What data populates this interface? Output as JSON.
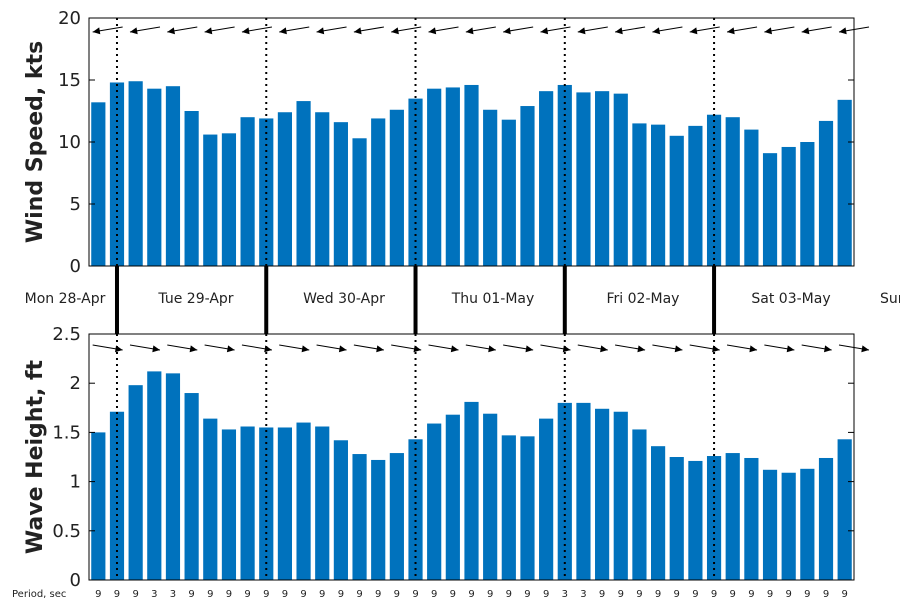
{
  "chart_data": [
    {
      "type": "bar",
      "ylabel": "Wind Speed, kts",
      "ylim": [
        0,
        20
      ],
      "yticks": [
        "0",
        "5",
        "10",
        "15",
        "20"
      ],
      "bar_color": "#0072bd",
      "values": [
        13.2,
        14.8,
        14.9,
        14.3,
        14.5,
        12.5,
        10.6,
        10.7,
        12.0,
        11.9,
        12.4,
        13.3,
        12.4,
        11.6,
        10.3,
        11.9,
        12.6,
        13.5,
        14.3,
        14.4,
        14.6,
        12.6,
        11.8,
        12.9,
        14.1,
        14.6,
        14.0,
        14.1,
        13.9,
        11.5,
        11.4,
        10.5,
        11.3,
        12.2,
        12.0,
        11.0,
        9.1,
        9.6,
        10.0,
        11.7,
        13.4
      ],
      "direction_arrows": "pointing left, slightly down-left"
    },
    {
      "type": "bar",
      "ylabel": "Wave Height, ft",
      "ylim": [
        0,
        2.5
      ],
      "yticks": [
        "0",
        "0.5",
        "1",
        "1.5",
        "2",
        "2.5"
      ],
      "bar_color": "#0072bd",
      "values": [
        1.5,
        1.71,
        1.98,
        2.12,
        2.1,
        1.9,
        1.64,
        1.53,
        1.56,
        1.55,
        1.55,
        1.6,
        1.56,
        1.42,
        1.28,
        1.22,
        1.29,
        1.43,
        1.59,
        1.68,
        1.81,
        1.69,
        1.47,
        1.46,
        1.64,
        1.8,
        1.8,
        1.74,
        1.71,
        1.53,
        1.36,
        1.25,
        1.21,
        1.26,
        1.29,
        1.24,
        1.12,
        1.09,
        1.13,
        1.24,
        1.43
      ],
      "direction_arrows": "pointing right, slightly down-right",
      "period_label": "Period, sec",
      "periods": [
        "9",
        "9",
        "9",
        "3",
        "3",
        "9",
        "9",
        "9",
        "9",
        "9",
        "9",
        "9",
        "9",
        "9",
        "9",
        "9",
        "9",
        "9",
        "9",
        "9",
        "9",
        "9",
        "9",
        "9",
        "9",
        "3",
        "3",
        "9",
        "9",
        "9",
        "9",
        "9",
        "9",
        "9",
        "9",
        "9",
        "9",
        "9",
        "9",
        "9",
        "9"
      ]
    }
  ],
  "days": [
    "Mon 28-Apr",
    "Tue 29-Apr",
    "Wed 30-Apr",
    "Thu 01-May",
    "Fri 02-May",
    "Sat 03-May",
    "Sun"
  ],
  "colors": {
    "bar": "#0072bd",
    "axis": "#000000"
  }
}
